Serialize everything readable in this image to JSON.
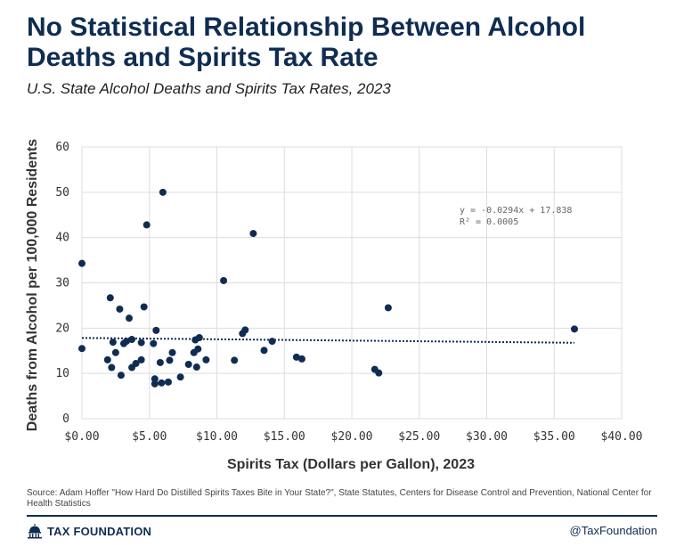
{
  "header": {
    "title": "No Statistical Relationship Between Alcohol Deaths and Spirits Tax Rate",
    "subtitle": "U.S. State Alcohol Deaths and Spirits Tax Rates, 2023"
  },
  "chart_data": {
    "type": "scatter",
    "xlabel": "Spirits Tax (Dollars per Gallon), 2023",
    "ylabel": "Deaths from Alcohol per 100,000 Residents",
    "xlim": [
      0,
      40
    ],
    "ylim": [
      0,
      60
    ],
    "x_ticks": [
      0,
      5,
      10,
      15,
      20,
      25,
      30,
      35,
      40
    ],
    "x_tick_labels": [
      "$0.00",
      "$5.00",
      "$10.00",
      "$15.00",
      "$20.00",
      "$25.00",
      "$30.00",
      "$35.00",
      "$40.00"
    ],
    "y_ticks": [
      0,
      10,
      20,
      30,
      40,
      50,
      60
    ],
    "y_tick_labels": [
      "0",
      "10",
      "20",
      "30",
      "40",
      "50",
      "60"
    ],
    "grid": true,
    "point_color": "#0f2d52",
    "trendline": {
      "slope": -0.0294,
      "intercept": 17.838,
      "x_range": [
        0,
        36.5
      ],
      "style": "dotted",
      "equation_label": "y = -0.0294x + 17.838",
      "r2_label": "R² = 0.0005"
    },
    "points": [
      {
        "x": 0.0,
        "y": 34.3
      },
      {
        "x": 0.0,
        "y": 15.5
      },
      {
        "x": 1.9,
        "y": 13.0
      },
      {
        "x": 2.1,
        "y": 26.7
      },
      {
        "x": 2.2,
        "y": 11.3
      },
      {
        "x": 2.3,
        "y": 16.9
      },
      {
        "x": 2.5,
        "y": 14.6
      },
      {
        "x": 2.8,
        "y": 24.2
      },
      {
        "x": 2.9,
        "y": 9.6
      },
      {
        "x": 3.1,
        "y": 16.6
      },
      {
        "x": 3.3,
        "y": 17.1
      },
      {
        "x": 3.5,
        "y": 22.2
      },
      {
        "x": 3.7,
        "y": 17.5
      },
      {
        "x": 3.7,
        "y": 11.3
      },
      {
        "x": 4.0,
        "y": 12.2
      },
      {
        "x": 4.4,
        "y": 13.0
      },
      {
        "x": 4.4,
        "y": 16.8
      },
      {
        "x": 4.6,
        "y": 24.7
      },
      {
        "x": 4.8,
        "y": 42.8
      },
      {
        "x": 5.3,
        "y": 16.6
      },
      {
        "x": 5.4,
        "y": 8.8
      },
      {
        "x": 5.4,
        "y": 7.7
      },
      {
        "x": 5.5,
        "y": 19.5
      },
      {
        "x": 5.8,
        "y": 12.4
      },
      {
        "x": 5.9,
        "y": 7.9
      },
      {
        "x": 6.0,
        "y": 50.0
      },
      {
        "x": 6.4,
        "y": 8.1
      },
      {
        "x": 6.5,
        "y": 12.9
      },
      {
        "x": 6.7,
        "y": 14.6
      },
      {
        "x": 7.3,
        "y": 9.2
      },
      {
        "x": 7.9,
        "y": 12.0
      },
      {
        "x": 8.3,
        "y": 14.6
      },
      {
        "x": 8.4,
        "y": 17.4
      },
      {
        "x": 8.5,
        "y": 11.4
      },
      {
        "x": 8.6,
        "y": 15.4
      },
      {
        "x": 8.7,
        "y": 17.9
      },
      {
        "x": 9.2,
        "y": 13.0
      },
      {
        "x": 10.5,
        "y": 30.5
      },
      {
        "x": 11.3,
        "y": 12.9
      },
      {
        "x": 11.9,
        "y": 18.8
      },
      {
        "x": 12.1,
        "y": 19.6
      },
      {
        "x": 12.7,
        "y": 40.9
      },
      {
        "x": 13.5,
        "y": 15.1
      },
      {
        "x": 14.1,
        "y": 17.1
      },
      {
        "x": 15.9,
        "y": 13.6
      },
      {
        "x": 16.3,
        "y": 13.2
      },
      {
        "x": 21.7,
        "y": 10.9
      },
      {
        "x": 22.0,
        "y": 10.1
      },
      {
        "x": 22.7,
        "y": 24.5
      },
      {
        "x": 36.5,
        "y": 19.8
      }
    ]
  },
  "footer": {
    "source": "Source: Adam Hoffer \"How Hard Do Distilled Spirits Taxes Bite in Your State?\", State Statutes, Centers for Disease Control and Prevention, National Center for Health Statistics",
    "brand": "TAX FOUNDATION",
    "handle": "@TaxFoundation",
    "brand_color": "#0f2d52"
  }
}
